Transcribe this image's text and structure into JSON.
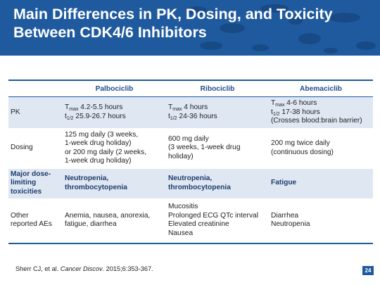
{
  "slide": {
    "title_line1": "Main Differences in PK, Dosing, and Toxicity",
    "title_line2": "Between CDK4/6 Inhibitors",
    "colors": {
      "header_bg": "#1f5a9e",
      "row_shade": "#dfe7f3",
      "header_text": "#1f4e8c"
    }
  },
  "table": {
    "columns": [
      "",
      "Palbociclib",
      "Ribociclib",
      "Abemaciclib"
    ],
    "pk": {
      "label": "PK",
      "palbociclib": {
        "tmax_sym": "T",
        "tmax_sub": "max",
        "tmax_val": " 4.2-5.5 hours",
        "thalf_sym": "t",
        "thalf_sub": "1/2",
        "thalf_val": " 25.9-26.7 hours"
      },
      "ribociclib": {
        "tmax_sym": "T",
        "tmax_sub": "max",
        "tmax_val": " 4 hours",
        "thalf_sym": "t",
        "thalf_sub": "1/2",
        "thalf_val": " 24-36 hours"
      },
      "abemaciclib": {
        "tmax_sym": "T",
        "tmax_sub": "max",
        "tmax_val": " 4-6 hours",
        "thalf_sym": "t",
        "thalf_sub": "1/2",
        "thalf_val": " 17-38 hours",
        "note": "(Crosses blood:brain barrier)"
      }
    },
    "dosing": {
      "label": "Dosing",
      "palbociclib": [
        "125 mg daily (3 weeks,",
        "1-week drug holiday)",
        "or 200 mg daily (2 weeks,",
        "1-week drug holiday)"
      ],
      "ribociclib": [
        "600 mg daily",
        "(3 weeks, 1-week drug",
        "holiday)"
      ],
      "abemaciclib": [
        "200 mg twice daily",
        "(continuous dosing)"
      ]
    },
    "major_tox": {
      "label": [
        "Major dose-",
        "limiting",
        "toxicities"
      ],
      "palbociclib": [
        "Neutropenia,",
        "thrombocytopenia"
      ],
      "ribociclib": [
        "Neutropenia,",
        "thrombocytopenia"
      ],
      "abemaciclib": [
        "Fatigue"
      ]
    },
    "other_aes": {
      "label": [
        "Other",
        "reported AEs"
      ],
      "palbociclib": [
        "Anemia, nausea, anorexia,",
        "fatigue, diarrhea"
      ],
      "ribociclib": [
        "Mucositis",
        "Prolonged ECG QTc interval",
        "Elevated creatinine",
        "Nausea"
      ],
      "abemaciclib": [
        "Diarrhea",
        "Neutropenia"
      ]
    }
  },
  "footnote": {
    "authors": "Sherr CJ, et al. ",
    "journal": "Cancer Discov",
    "citation": ". 2015;6:353-367."
  },
  "page_number": "24"
}
